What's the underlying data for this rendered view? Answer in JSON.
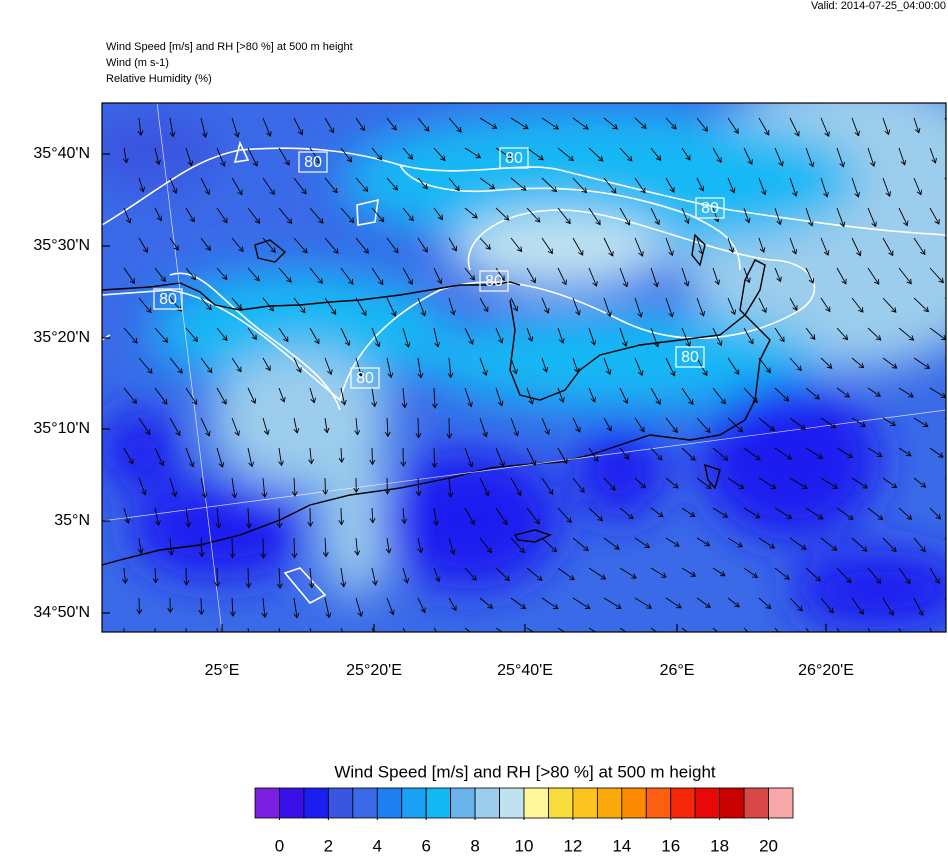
{
  "valid": "Valid: 2014-07-25_04:00:00",
  "header": [
    "Wind Speed [m/s] and RH [>80 %] at 500 m height",
    "Wind   (m s-1)",
    "Relative Humidity   (%)"
  ],
  "lat_labels": [
    "35°40'N",
    "35°30'N",
    "35°20'N",
    "35°10'N",
    "35°N",
    "34°50'N"
  ],
  "lon_labels": [
    "25°E",
    "25°20'E",
    "25°40'E",
    "26°E",
    "26°20'E"
  ],
  "contour_labels": [
    "80",
    "80",
    "80",
    "80",
    "80",
    "80",
    "80"
  ],
  "colorbar": {
    "title": "Wind Speed [m/s] and RH [>80 %] at 500 m height",
    "colors": [
      "#7b1fe0",
      "#3a10e8",
      "#1a1ff0",
      "#3a55e0",
      "#3a6ae8",
      "#1e7ff0",
      "#1aa0f5",
      "#14b8f5",
      "#6ab4ec",
      "#9ccdec",
      "#c0e2f0",
      "#fdf79a",
      "#f7dc3c",
      "#fbc41e",
      "#fba80a",
      "#fb8a00",
      "#fb6010",
      "#f7280a",
      "#e80808",
      "#c80000",
      "#d84848",
      "#f8a8a8"
    ],
    "lim": [
      -1,
      21
    ],
    "ticks": [
      0,
      2,
      4,
      6,
      8,
      10,
      12,
      14,
      16,
      18,
      20
    ]
  }
}
